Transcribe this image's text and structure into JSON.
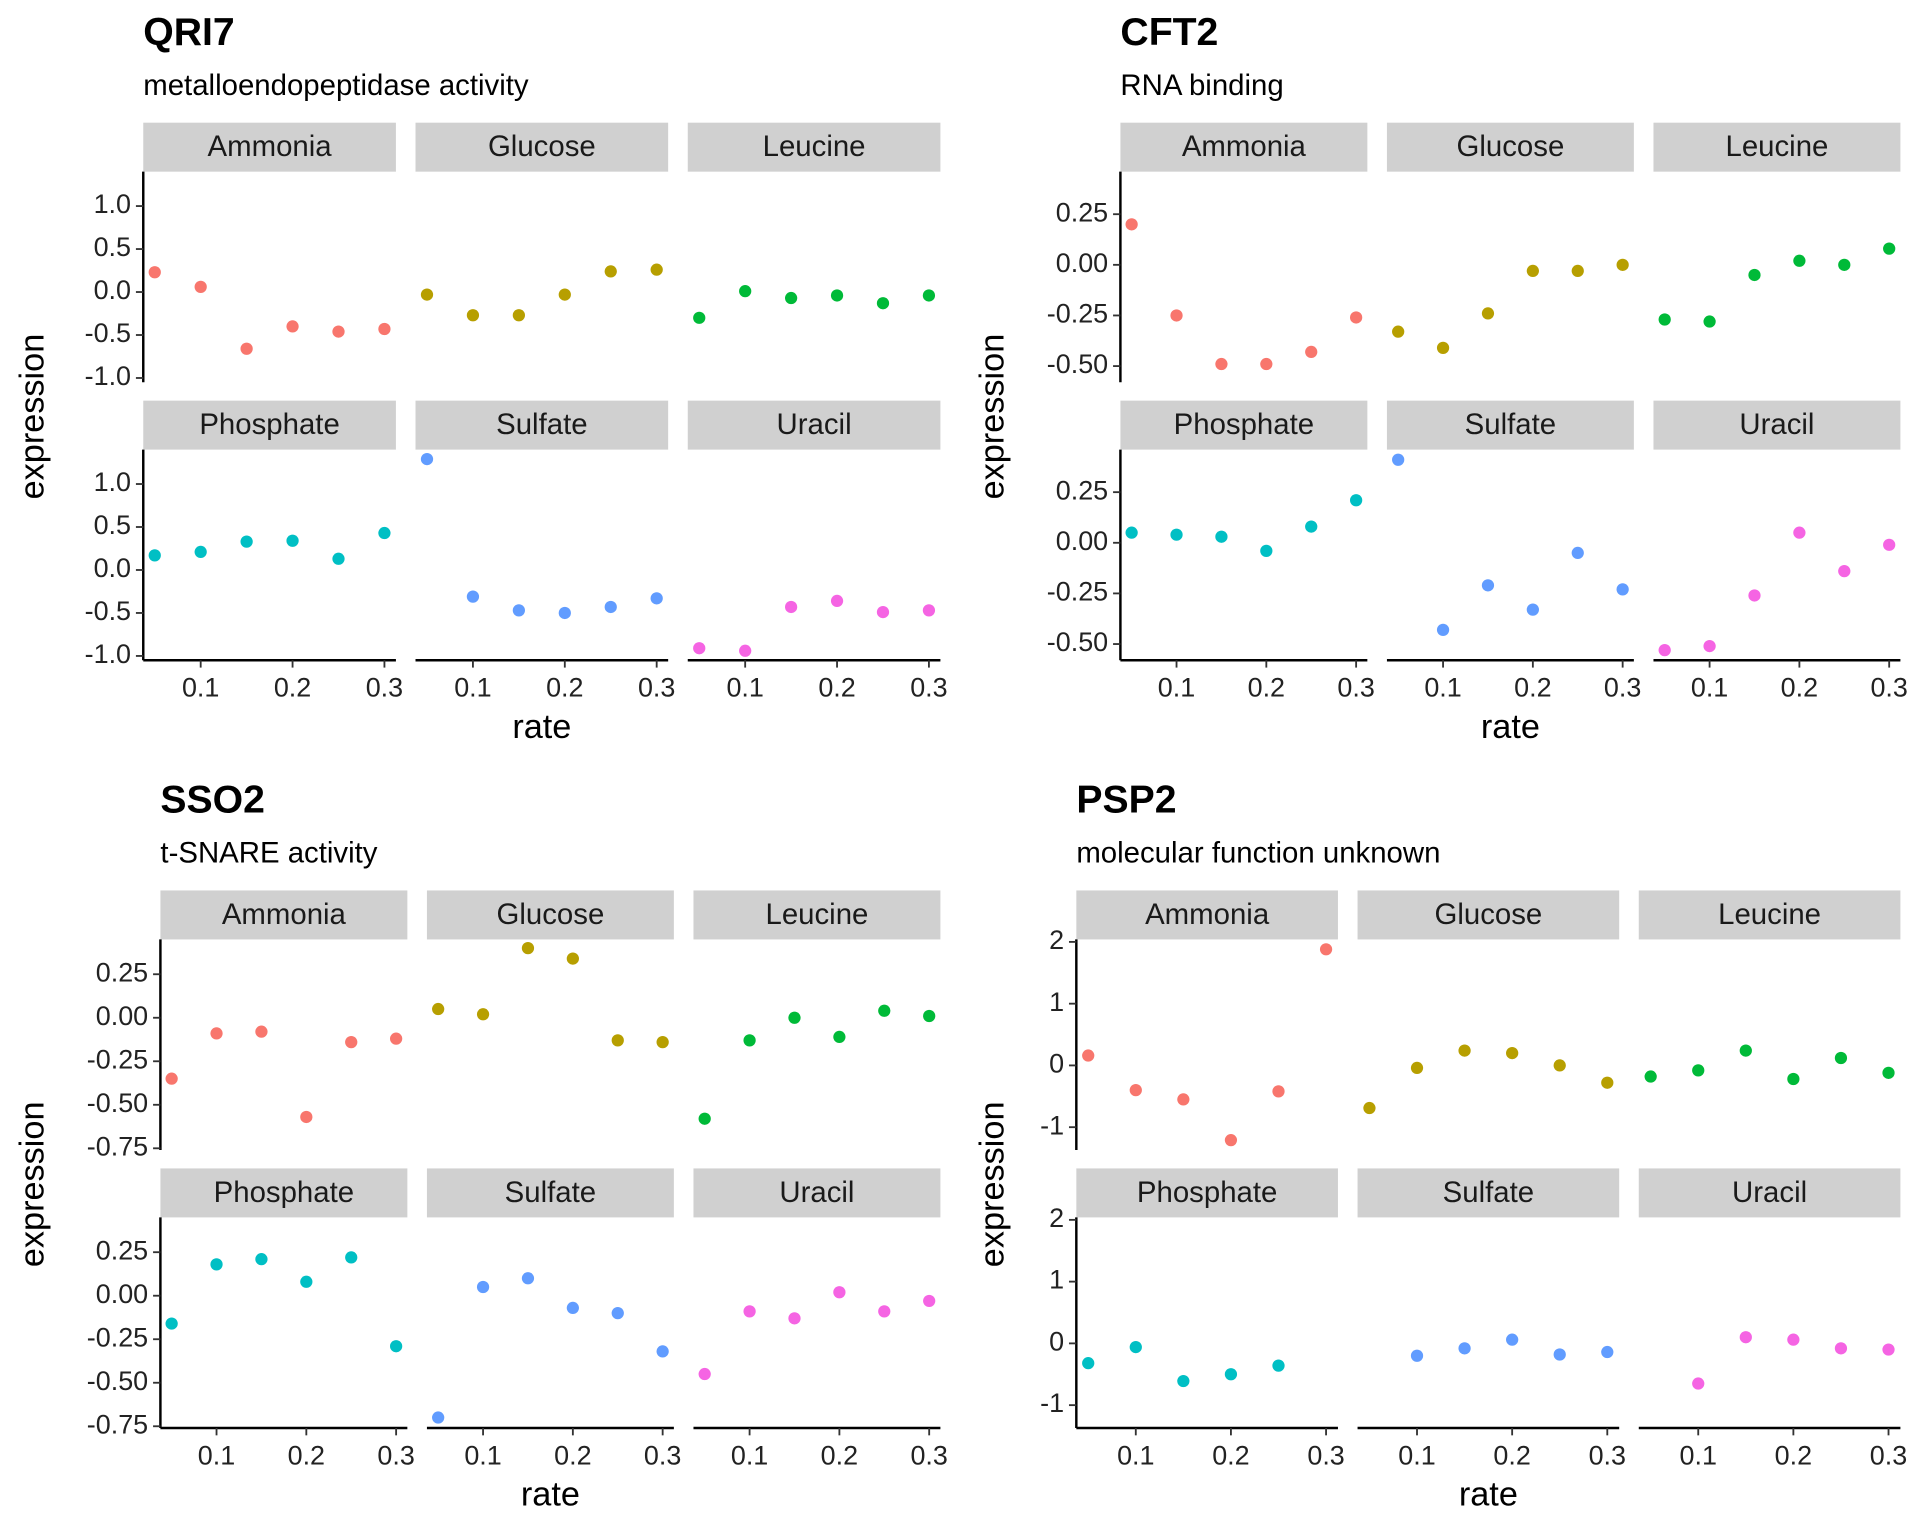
{
  "chart_data": [
    {
      "type": "scatter",
      "title": "QRI7",
      "subtitle": "metalloendopeptidase activity",
      "x_label": "rate",
      "y_label": "expression",
      "x": [
        0.05,
        0.1,
        0.15,
        0.2,
        0.25,
        0.3
      ],
      "xlim": [
        0.0375,
        0.3125
      ],
      "xticks": [
        0.1,
        0.2,
        0.3
      ],
      "ylim": [
        -1.05,
        1.4
      ],
      "yticks": [
        {
          "value": -1,
          "label": "-1.0"
        },
        -0.5,
        {
          "value": 0,
          "label": "0.0"
        },
        0.5,
        {
          "value": 1,
          "label": "1.0"
        }
      ],
      "series": [
        {
          "name": "Ammonia",
          "color": "#F8766D",
          "values": [
            0.23,
            0.06,
            -0.66,
            -0.4,
            -0.46,
            -0.43
          ]
        },
        {
          "name": "Glucose",
          "color": "#B79F00",
          "values": [
            -0.03,
            -0.27,
            -0.27,
            -0.03,
            0.24,
            0.26
          ]
        },
        {
          "name": "Leucine",
          "color": "#00BA38",
          "values": [
            -0.3,
            0.01,
            -0.07,
            -0.04,
            -0.13,
            -0.04
          ]
        },
        {
          "name": "Phosphate",
          "color": "#00BFC4",
          "values": [
            0.17,
            0.21,
            0.33,
            0.34,
            0.13,
            0.43
          ]
        },
        {
          "name": "Sulfate",
          "color": "#619CFF",
          "values": [
            1.29,
            -0.31,
            -0.47,
            -0.5,
            -0.43,
            -0.33
          ]
        },
        {
          "name": "Uracil",
          "color": "#F564E3",
          "values": [
            -0.91,
            -0.94,
            -0.43,
            -0.36,
            -0.49,
            -0.47
          ]
        }
      ]
    },
    {
      "type": "scatter",
      "title": "CFT2",
      "subtitle": "RNA binding",
      "x_label": "rate",
      "y_label": "expression",
      "x": [
        0.05,
        0.1,
        0.15,
        0.2,
        0.25,
        0.3
      ],
      "xlim": [
        0.0375,
        0.3125
      ],
      "xticks": [
        0.1,
        0.2,
        0.3
      ],
      "ylim": [
        -0.58,
        0.46
      ],
      "yticks": [
        {
          "value": -0.5,
          "label": "-0.50"
        },
        -0.25,
        {
          "value": 0,
          "label": "0.00"
        },
        0.25
      ],
      "series": [
        {
          "name": "Ammonia",
          "color": "#F8766D",
          "values": [
            0.2,
            -0.25,
            -0.49,
            -0.49,
            -0.43,
            -0.26
          ]
        },
        {
          "name": "Glucose",
          "color": "#B79F00",
          "values": [
            -0.33,
            -0.41,
            -0.24,
            -0.03,
            -0.03,
            0.0
          ]
        },
        {
          "name": "Leucine",
          "color": "#00BA38",
          "values": [
            -0.27,
            -0.28,
            -0.05,
            0.02,
            0.0,
            0.08
          ]
        },
        {
          "name": "Phosphate",
          "color": "#00BFC4",
          "values": [
            0.05,
            0.04,
            0.03,
            -0.04,
            0.08,
            0.21
          ]
        },
        {
          "name": "Sulfate",
          "color": "#619CFF",
          "values": [
            0.41,
            -0.43,
            -0.21,
            -0.33,
            -0.05,
            -0.23
          ]
        },
        {
          "name": "Uracil",
          "color": "#F564E3",
          "values": [
            -0.53,
            -0.51,
            -0.26,
            0.05,
            -0.14,
            -0.01
          ]
        }
      ]
    },
    {
      "type": "scatter",
      "title": "SSO2",
      "subtitle": "t-SNARE activity",
      "x_label": "rate",
      "y_label": "expression",
      "x": [
        0.05,
        0.1,
        0.15,
        0.2,
        0.25,
        0.3
      ],
      "xlim": [
        0.0375,
        0.3125
      ],
      "xticks": [
        0.1,
        0.2,
        0.3
      ],
      "ylim": [
        -0.76,
        0.45
      ],
      "yticks": [
        {
          "value": -0.75,
          "label": "-0.75"
        },
        {
          "value": -0.5,
          "label": "-0.50"
        },
        -0.25,
        {
          "value": 0,
          "label": "0.00"
        },
        0.25
      ],
      "series": [
        {
          "name": "Ammonia",
          "color": "#F8766D",
          "values": [
            -0.35,
            -0.09,
            -0.08,
            -0.57,
            -0.14,
            -0.12
          ]
        },
        {
          "name": "Glucose",
          "color": "#B79F00",
          "values": [
            0.05,
            0.02,
            0.4,
            0.34,
            -0.13,
            -0.14
          ]
        },
        {
          "name": "Leucine",
          "color": "#00BA38",
          "values": [
            -0.58,
            -0.13,
            0.0,
            -0.11,
            0.04,
            0.01
          ]
        },
        {
          "name": "Phosphate",
          "color": "#00BFC4",
          "values": [
            -0.16,
            0.18,
            0.21,
            0.08,
            0.22,
            -0.29
          ]
        },
        {
          "name": "Sulfate",
          "color": "#619CFF",
          "values": [
            -0.7,
            0.05,
            0.1,
            -0.07,
            -0.1,
            -0.32
          ]
        },
        {
          "name": "Uracil",
          "color": "#F564E3",
          "values": [
            -0.45,
            -0.09,
            -0.13,
            0.02,
            -0.09,
            -0.03
          ]
        }
      ]
    },
    {
      "type": "scatter",
      "title": "PSP2",
      "subtitle": "molecular function unknown",
      "x_label": "rate",
      "y_label": "expression",
      "x": [
        0.05,
        0.1,
        0.15,
        0.2,
        0.25,
        0.3
      ],
      "xlim": [
        0.0375,
        0.3125
      ],
      "xticks": [
        0.1,
        0.2,
        0.3
      ],
      "ylim": [
        -1.37,
        2.04
      ],
      "yticks": [
        -1,
        0,
        1,
        2
      ],
      "series": [
        {
          "name": "Ammonia",
          "color": "#F8766D",
          "values": [
            0.16,
            -0.4,
            -0.55,
            -1.21,
            -0.42,
            1.88
          ]
        },
        {
          "name": "Glucose",
          "color": "#B79F00",
          "values": [
            -0.69,
            -0.04,
            0.24,
            0.2,
            0.0,
            -0.28
          ]
        },
        {
          "name": "Leucine",
          "color": "#00BA38",
          "values": [
            -0.18,
            -0.08,
            0.24,
            -0.22,
            0.12,
            -0.12
          ]
        },
        {
          "name": "Phosphate",
          "color": "#00BFC4",
          "values": [
            -0.32,
            -0.06,
            -0.61,
            -0.5,
            -0.36,
            null
          ]
        },
        {
          "name": "Sulfate",
          "color": "#619CFF",
          "values": [
            null,
            -0.2,
            -0.08,
            0.06,
            -0.18,
            -0.14
          ]
        },
        {
          "name": "Uracil",
          "color": "#F564E3",
          "values": [
            null,
            -0.65,
            0.1,
            0.06,
            -0.08,
            -0.1
          ]
        }
      ]
    }
  ]
}
